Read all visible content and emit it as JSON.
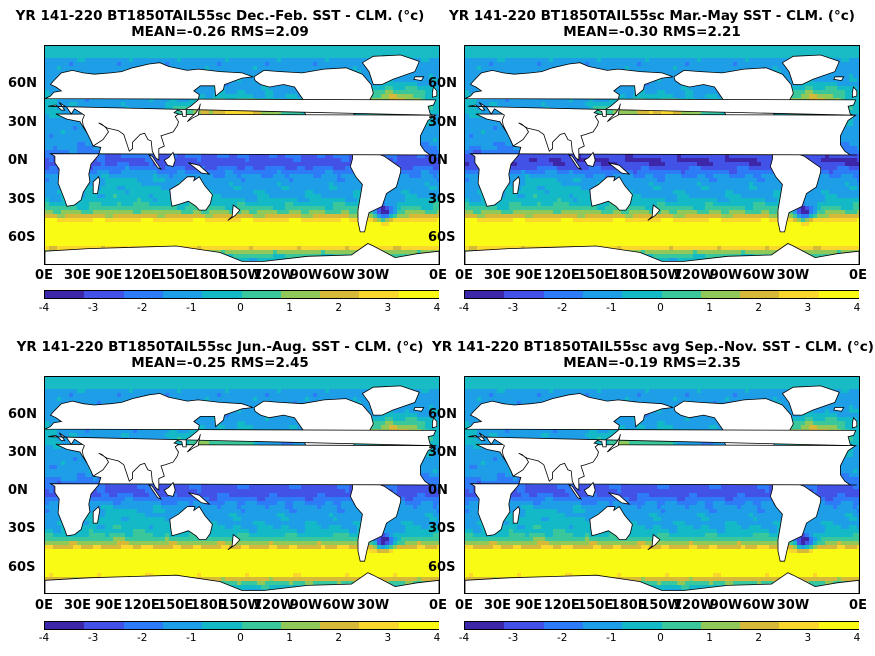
{
  "panels": [
    {
      "title_line1": "YR 141-220 BT1850TAIL55sc  Dec.-Feb. SST - CLM. (°c)",
      "title_line2": "MEAN=-0.26   RMS=2.09",
      "season": "DJF"
    },
    {
      "title_line1": "YR 141-220 BT1850TAIL55sc Mar.-May SST - CLM. (°c)",
      "title_line2": "MEAN=-0.30   RMS=2.21",
      "season": "MAM"
    },
    {
      "title_line1": "YR 141-220 BT1850TAIL55sc Jun.-Aug. SST - CLM. (°c)",
      "title_line2": "MEAN=-0.25   RMS=2.45",
      "season": "JJA"
    },
    {
      "title_line1": "YR 141-220 BT1850TAIL55sc avg Sep.-Nov. SST - CLM. (°c)",
      "title_line2": "MEAN=-0.19   RMS=2.35",
      "season": "SON"
    }
  ],
  "lat_labels": [
    "60N",
    "30N",
    "0N",
    "30S",
    "60S"
  ],
  "lon_labels": [
    "0E",
    "30E",
    "90E",
    "120E",
    "150E",
    "180E",
    "150W",
    "120W",
    "90W",
    "60W",
    "30W",
    "0E"
  ],
  "colorbar": {
    "ticks": [
      "-4",
      "-3",
      "-2",
      "-1",
      "0",
      "1",
      "2",
      "3",
      "4"
    ],
    "min": -4,
    "max": 4,
    "colors": [
      "#3e26a8",
      "#4352e6",
      "#2d7bf6",
      "#1f9ee8",
      "#14b9c8",
      "#3ac79c",
      "#90c95a",
      "#d7b93a",
      "#fad72c",
      "#f9fb15"
    ]
  },
  "colors": {
    "land": "#ffffff",
    "coast": "#000000",
    "arctic": "#19bcc4"
  }
}
